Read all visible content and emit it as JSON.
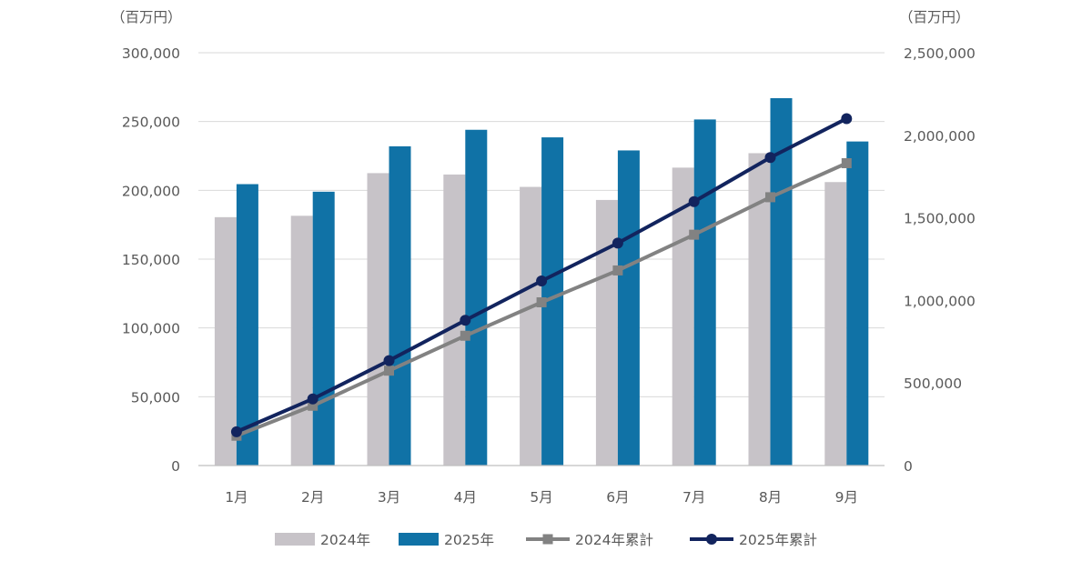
{
  "chart_data": {
    "type": "bar",
    "title": "",
    "left_axis_unit": "（百万円）",
    "right_axis_unit": "（百万円）",
    "categories": [
      "1月",
      "2月",
      "3月",
      "4月",
      "5月",
      "6月",
      "7月",
      "8月",
      "9月"
    ],
    "ylim_left": [
      0,
      300000
    ],
    "ylim_right": [
      0,
      2500000
    ],
    "left_ticks": [
      "0",
      "50,000",
      "100,000",
      "150,000",
      "200,000",
      "250,000",
      "300,000"
    ],
    "right_ticks": [
      "0",
      "500,000",
      "1,000,000",
      "1,500,000",
      "2,000,000",
      "2,500,000"
    ],
    "grid": true,
    "legend_position": "bottom",
    "series": [
      {
        "name": "2024年",
        "kind": "bar",
        "axis": "left",
        "color": "#c7c3c8",
        "values": [
          180500,
          181500,
          212500,
          211500,
          202500,
          193000,
          216500,
          227000,
          206000
        ]
      },
      {
        "name": "2025年",
        "kind": "bar",
        "axis": "left",
        "color": "#1072a6",
        "values": [
          204500,
          199000,
          232000,
          244000,
          238500,
          229000,
          251500,
          267000,
          235500
        ]
      },
      {
        "name": "2024年累計",
        "kind": "line",
        "axis": "right",
        "color": "#828282",
        "marker": "square",
        "values": [
          180500,
          362000,
          574500,
          786000,
          988500,
          1181500,
          1398000,
          1625000,
          1831000
        ]
      },
      {
        "name": "2025年累計",
        "kind": "line",
        "axis": "right",
        "color": "#12245e",
        "marker": "circle",
        "values": [
          204500,
          403500,
          635500,
          879500,
          1118000,
          1347000,
          1598500,
          1865500,
          2101000
        ]
      }
    ]
  }
}
